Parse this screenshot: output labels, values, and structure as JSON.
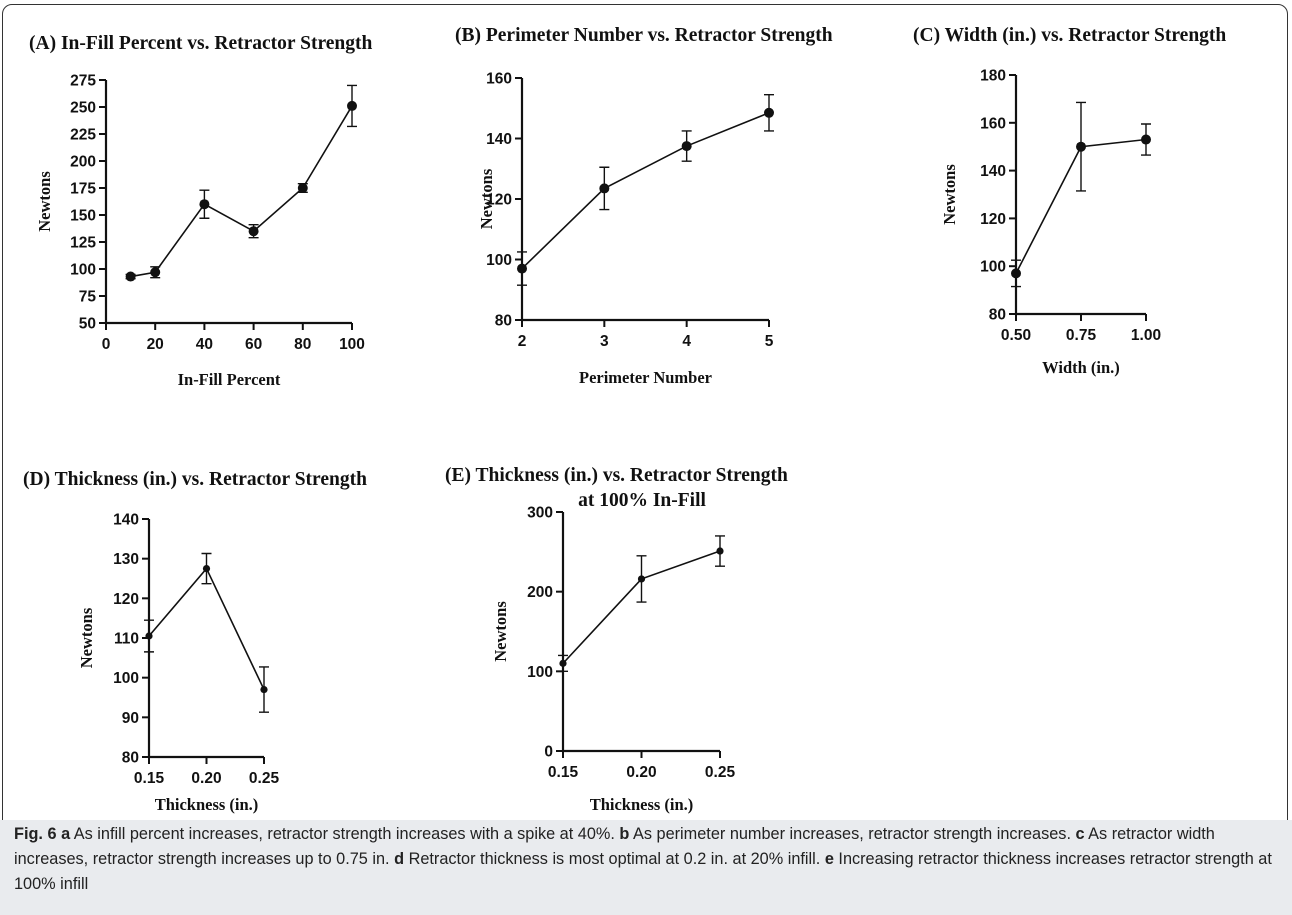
{
  "chart_data": [
    {
      "id": "A",
      "type": "line",
      "title": "(A) In-Fill Percent vs. Retractor Strength",
      "xlabel": "In-Fill Percent",
      "ylabel": "Newtons",
      "xlim": [
        0,
        100
      ],
      "ylim": [
        50,
        275
      ],
      "xticks": [
        0,
        20,
        40,
        60,
        80,
        100
      ],
      "yticks": [
        50,
        75,
        100,
        125,
        150,
        175,
        200,
        225,
        250,
        275
      ],
      "xtick_labels": [
        "0",
        "20",
        "40",
        "60",
        "80",
        "100"
      ],
      "ytick_labels": [
        "50",
        "75",
        "100",
        "125",
        "150",
        "175",
        "200",
        "225",
        "250",
        "275"
      ],
      "series": [
        {
          "x": [
            10,
            20,
            40,
            60,
            80,
            100
          ],
          "y": [
            93,
            97,
            160,
            135,
            175,
            251
          ],
          "err": [
            2,
            5,
            13,
            6,
            4,
            19
          ]
        }
      ]
    },
    {
      "id": "B",
      "type": "line",
      "title": "(B) Perimeter Number vs. Retractor Strength",
      "xlabel": "Perimeter Number",
      "ylabel": "Newtons",
      "xlim": [
        2,
        5
      ],
      "ylim": [
        80,
        160
      ],
      "xticks": [
        2,
        3,
        4,
        5
      ],
      "yticks": [
        80,
        100,
        120,
        140,
        160
      ],
      "xtick_labels": [
        "2",
        "3",
        "4",
        "5"
      ],
      "ytick_labels": [
        "80",
        "100",
        "120",
        "140",
        "160"
      ],
      "series": [
        {
          "x": [
            2,
            3,
            4,
            5
          ],
          "y": [
            97,
            123.5,
            137.5,
            148.5
          ],
          "err": [
            5.5,
            7,
            5,
            6
          ]
        }
      ]
    },
    {
      "id": "C",
      "type": "line",
      "title": "(C) Width (in.) vs. Retractor Strength",
      "xlabel": "Width (in.)",
      "ylabel": "Newtons",
      "xlim": [
        0.5,
        1.0
      ],
      "ylim": [
        80,
        180
      ],
      "xticks": [
        0.5,
        0.75,
        1.0
      ],
      "yticks": [
        80,
        100,
        120,
        140,
        160,
        180
      ],
      "xtick_labels": [
        "0.50",
        "0.75",
        "1.00"
      ],
      "ytick_labels": [
        "80",
        "100",
        "120",
        "140",
        "160",
        "180"
      ],
      "series": [
        {
          "x": [
            0.5,
            0.75,
            1.0
          ],
          "y": [
            97,
            150,
            153
          ],
          "err": [
            5.5,
            18.5,
            6.5
          ]
        }
      ]
    },
    {
      "id": "D",
      "type": "line",
      "title": "(D) Thickness (in.) vs. Retractor Strength",
      "xlabel": "Thickness (in.)",
      "ylabel": "Newtons",
      "xlim": [
        0.15,
        0.25
      ],
      "ylim": [
        80,
        140
      ],
      "xticks": [
        0.15,
        0.2,
        0.25
      ],
      "yticks": [
        80,
        90,
        100,
        110,
        120,
        130,
        140
      ],
      "xtick_labels": [
        "0.15",
        "0.20",
        "0.25"
      ],
      "ytick_labels": [
        "80",
        "90",
        "100",
        "110",
        "120",
        "130",
        "140"
      ],
      "series": [
        {
          "x": [
            0.15,
            0.2,
            0.25
          ],
          "y": [
            110.5,
            127.5,
            97
          ],
          "err": [
            4,
            3.8,
            5.7
          ]
        }
      ]
    },
    {
      "id": "E",
      "type": "line",
      "title": "(E) Thickness (in.) vs. Retractor Strength",
      "title_line2": "at 100% In-Fill",
      "xlabel": "Thickness (in.)",
      "ylabel": "Newtons",
      "xlim": [
        0.15,
        0.25
      ],
      "ylim": [
        0,
        300
      ],
      "xticks": [
        0.15,
        0.2,
        0.25
      ],
      "yticks": [
        0,
        100,
        200,
        300
      ],
      "xtick_labels": [
        "0.15",
        "0.20",
        "0.25"
      ],
      "ytick_labels": [
        "0",
        "100",
        "200",
        "300"
      ],
      "series": [
        {
          "x": [
            0.15,
            0.2,
            0.25
          ],
          "y": [
            110,
            216,
            251
          ],
          "err": [
            10,
            29,
            19
          ]
        }
      ]
    }
  ],
  "caption": {
    "fig_label": "Fig. 6",
    "parts": [
      {
        "label": "a",
        "text": " As infill percent increases, retractor strength increases with a spike at 40%. "
      },
      {
        "label": "b",
        "text": " As perimeter number increases, retractor strength increases. "
      },
      {
        "label": "c",
        "text": " As retractor width increases, retractor strength increases up to 0.75 in. "
      },
      {
        "label": "d",
        "text": " Retractor thickness is most optimal at 0.2 in. at 20% infill. "
      },
      {
        "label": "e",
        "text": " Increasing retractor thickness increases retractor strength at 100% infill"
      }
    ]
  }
}
